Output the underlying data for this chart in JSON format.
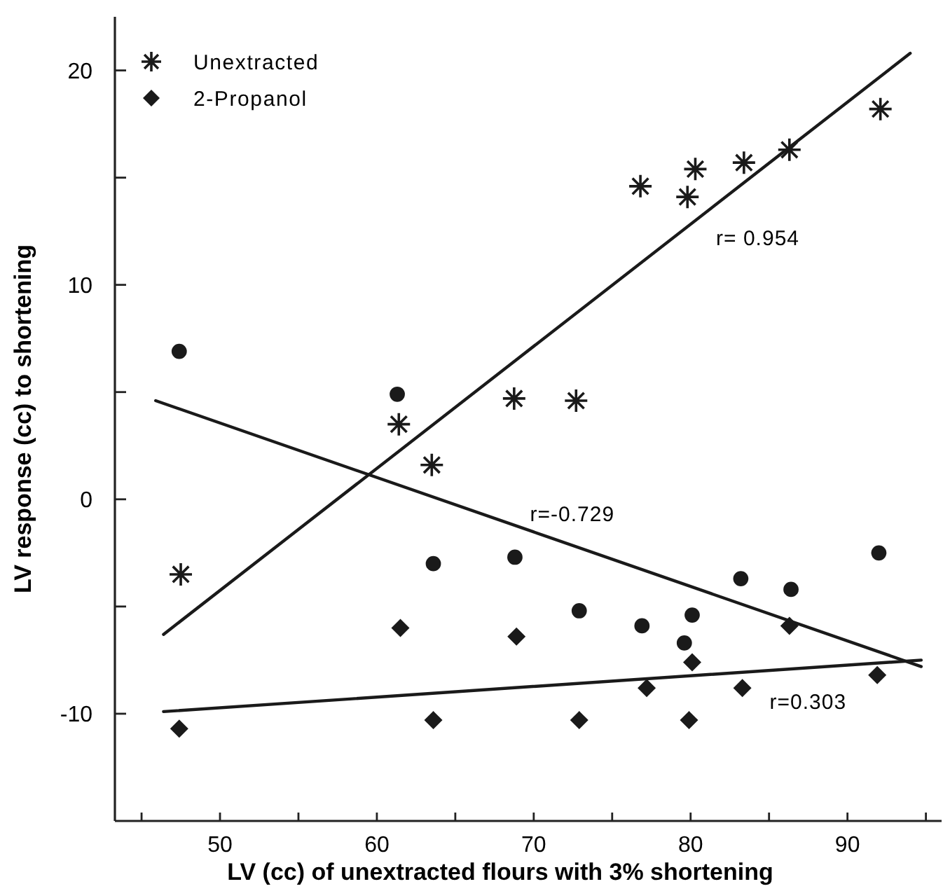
{
  "chart_data": {
    "type": "scatter",
    "xlabel": "LV (cc) of unextracted flours with 3% shortening",
    "ylabel": "LV response (cc) to shortening",
    "xlim": [
      43.3,
      96
    ],
    "ylim": [
      -15,
      22.5
    ],
    "xticks": [
      {
        "value": 45,
        "label": null
      },
      50,
      {
        "value": 55,
        "label": null
      },
      60,
      {
        "value": 65,
        "label": null
      },
      70,
      {
        "value": 75,
        "label": null
      },
      80,
      {
        "value": 85,
        "label": null
      },
      90,
      {
        "value": 95,
        "label": null
      }
    ],
    "yticks": [
      -10,
      {
        "value": -5,
        "label": null
      },
      0,
      {
        "value": 5,
        "label": null
      },
      10,
      {
        "value": 15,
        "label": null
      },
      20
    ],
    "grid": false,
    "legend": "top left",
    "series": [
      {
        "name": "Unextracted",
        "color": "#1a1a1a",
        "marker": "cross",
        "x": [
          47.5,
          61.4,
          63.5,
          68.75,
          72.7,
          76.8,
          79.8,
          80.3,
          83.4,
          86.3,
          92.1
        ],
        "values": [
          -3.5,
          3.5,
          1.6,
          4.7,
          4.6,
          14.6,
          14.1,
          15.4,
          15.7,
          16.3,
          18.2
        ]
      },
      {
        "color": "#1a1a1a",
        "marker": "circle",
        "x": [
          47.4,
          61.3,
          63.6,
          68.8,
          72.9,
          76.9,
          80.1,
          79.6,
          83.2,
          86.4,
          92.0
        ],
        "values": [
          6.9,
          4.9,
          -3.0,
          -2.7,
          -5.2,
          -5.9,
          -5.4,
          -6.7,
          -3.7,
          -4.2,
          -2.5
        ]
      },
      {
        "name": "2-Propanol",
        "color": "#1a1a1a",
        "marker": "diamond",
        "x": [
          47.4,
          61.5,
          63.6,
          68.9,
          72.9,
          77.2,
          80.1,
          79.9,
          83.3,
          86.3,
          91.9
        ],
        "values": [
          -10.7,
          -6.0,
          -10.3,
          -6.4,
          -10.3,
          -8.8,
          -7.6,
          -10.3,
          -8.8,
          -5.9,
          -8.2
        ]
      },
      {
        "type": "line",
        "color": "#1a1a1a",
        "marker": "none",
        "line_style": "solid",
        "x": [
          46.4,
          94.0
        ],
        "values": [
          -6.3,
          20.8
        ]
      },
      {
        "type": "line",
        "color": "#1a1a1a",
        "marker": "none",
        "line_style": "solid",
        "x": [
          45.9,
          94.7
        ],
        "values": [
          4.6,
          -7.8
        ]
      },
      {
        "type": "line",
        "color": "#1a1a1a",
        "marker": "none",
        "line_style": "solid",
        "x": [
          46.4,
          94.7
        ],
        "values": [
          -9.9,
          -7.5
        ]
      }
    ],
    "annotations": [
      "r= 0.954",
      "r=-0.729",
      "r=0.303"
    ]
  }
}
